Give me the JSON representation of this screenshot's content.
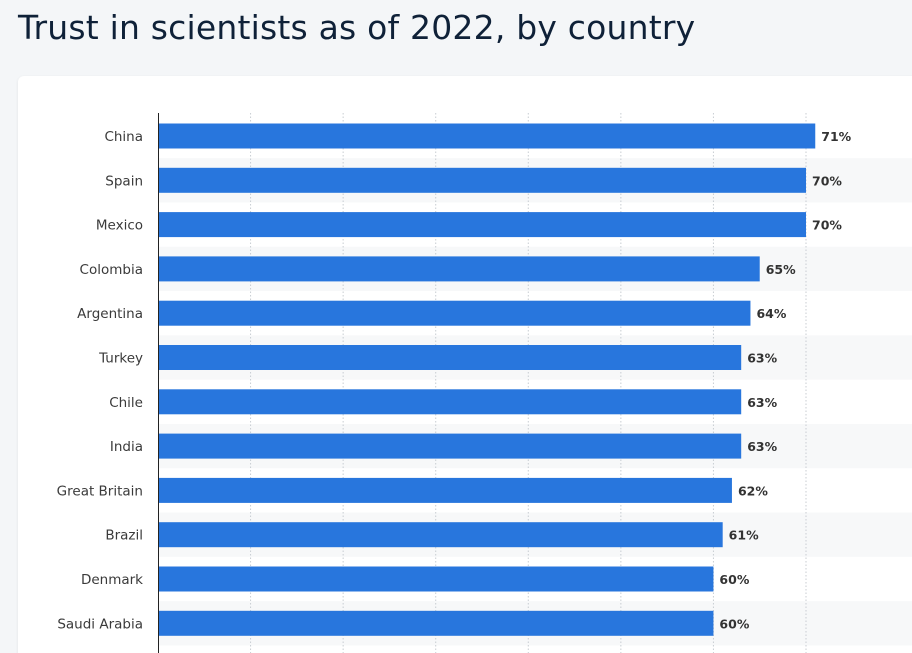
{
  "title": "Trust in scientists as of 2022, by country",
  "colors": {
    "bar": "#2876dd",
    "band": "#f7f8f9",
    "grid": "#c8cdd2",
    "axis": "#222222"
  },
  "chart_data": {
    "type": "bar",
    "orientation": "horizontal",
    "title": "Trust in scientists as of 2022, by country",
    "xlabel": "",
    "ylabel": "",
    "unit": "%",
    "xlim": [
      0,
      70
    ],
    "grid": true,
    "categories": [
      "China",
      "Spain",
      "Mexico",
      "Colombia",
      "Argentina",
      "Turkey",
      "Chile",
      "India",
      "Great Britain",
      "Brazil",
      "Denmark",
      "Saudi Arabia"
    ],
    "values": [
      71,
      70,
      70,
      65,
      64,
      63,
      63,
      63,
      62,
      61,
      60,
      60
    ],
    "value_labels": [
      "71%",
      "70%",
      "70%",
      "65%",
      "64%",
      "63%",
      "63%",
      "63%",
      "62%",
      "61%",
      "60%",
      "60%"
    ]
  }
}
